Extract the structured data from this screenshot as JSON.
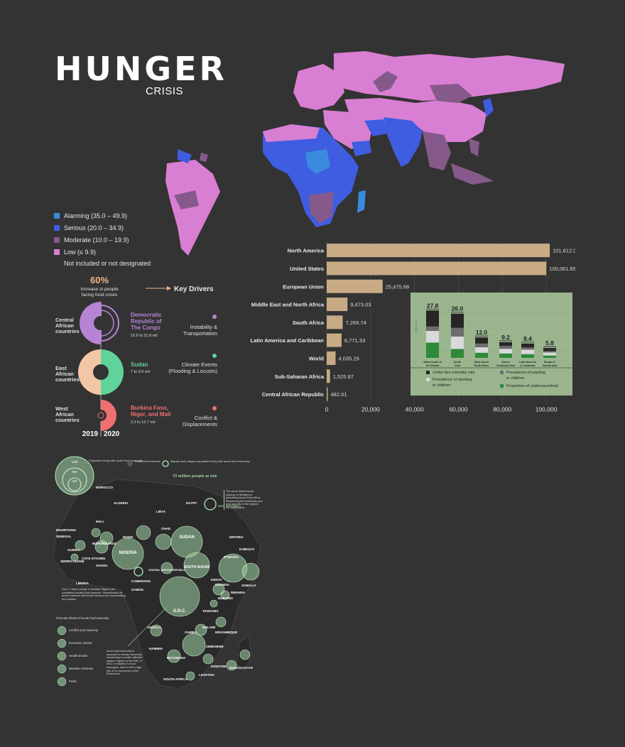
{
  "title": {
    "main": "HUNGER",
    "sub": "CRISIS"
  },
  "map_legend": [
    {
      "label": "Alarming (35.0 – 49.9)",
      "color": "#3a8be0"
    },
    {
      "label": "Serious (20.0 – 34.9)",
      "color": "#3f5de0"
    },
    {
      "label": "Moderate (10.0 – 19.9)",
      "color": "#855a8a"
    },
    {
      "label": "Low (≤ 9.9)",
      "color": "#d97fd3"
    },
    {
      "label": "Not included or not designated",
      "color": ""
    }
  ],
  "colors": {
    "background": "#333333",
    "bar": "#c8ab85",
    "panel": "#9ab58e",
    "purple": "#b684d4",
    "green": "#5fd39a",
    "coral": "#f0706f",
    "peach": "#f3c6a5"
  },
  "chart_data": [
    {
      "type": "bar",
      "orientation": "horizontal",
      "categories": [
        "North America",
        "United States",
        "European Union",
        "Middle East and North Africa",
        "South Africa",
        "Latin America and Caribbean",
        "World",
        "Sub-Saharan Africa",
        "Central African Republic"
      ],
      "values": [
        101612.06,
        100061.65,
        25475.68,
        9473.03,
        7269.74,
        6771.33,
        4035.29,
        1525.97,
        482.01
      ],
      "value_labels": [
        "101,612.06",
        "100,061.65",
        "25,475.68",
        "9,473.03",
        "7,269.74",
        "6,771.33",
        "4,035.29",
        "1,525.97",
        "482.01"
      ],
      "xlim": [
        0,
        110000
      ],
      "xticks": [
        0,
        20000,
        40000,
        60000,
        80000,
        100000
      ],
      "xtick_labels": [
        "0",
        "20,000",
        "40,000",
        "60,000",
        "80,000",
        "100,000"
      ],
      "grid": true
    },
    {
      "type": "bar",
      "stacked": true,
      "categories": [
        "Africa South of the Sahara",
        "South Asia",
        "West Asia & North Africa",
        "East & Southeast Asia",
        "Latin America & Caribbean",
        "Europe & Central Asia"
      ],
      "totals": [
        27.8,
        26.0,
        12.0,
        9.2,
        8.4,
        5.8
      ],
      "total_labels": [
        "27.8",
        "26.0",
        "12.0",
        "9.2",
        "8.4",
        "5.8"
      ],
      "ylabel": "GHI score",
      "series": [
        {
          "name": "Proportion of undernourished",
          "color": "#2e8a3a",
          "values": [
            9.0,
            5.2,
            3.0,
            2.6,
            2.2,
            1.4
          ]
        },
        {
          "name": "Prevalence of stunting in children",
          "color": "#d9d9d9",
          "values": [
            6.8,
            7.3,
            3.2,
            2.7,
            2.6,
            1.8
          ]
        },
        {
          "name": "Prevalence of wasting in children",
          "color": "#6d6d6d",
          "values": [
            2.6,
            5.1,
            2.2,
            1.7,
            1.3,
            0.8
          ]
        },
        {
          "name": "Under-five mortality rate",
          "color": "#262626",
          "values": [
            9.4,
            8.4,
            3.6,
            2.2,
            2.3,
            1.8
          ]
        }
      ],
      "legend": [
        "Under-five mortality rate",
        "Prevalence of wasting in children",
        "Prevalence of stunting in children",
        "Proportion of undernourished"
      ],
      "legend_placement": "bottom"
    }
  ],
  "key_drivers": {
    "pct": "60%",
    "pct_text_1": "Increase in people",
    "pct_text_2": "facing food crises",
    "heading": "Key Drivers",
    "years": [
      "2019",
      "2020"
    ],
    "rows": [
      {
        "region_1": "Central",
        "region_2": "African",
        "region_3": "countries",
        "country_1": "Democratic",
        "country_2": "Republic of",
        "country_3": "The Congo",
        "range": "15.6 to 21.8 mil",
        "driver_1": "Instability &",
        "driver_2": "Transportation"
      },
      {
        "region_1": "East",
        "region_2": "African",
        "region_3": "countries",
        "country_1": "Sudan",
        "country_2": "",
        "country_3": "",
        "range": "7 to 9.6 mil",
        "driver_1": "Climate Events",
        "driver_2": "(Flooding & Locusts)"
      },
      {
        "region_1": "West",
        "region_2": "African",
        "region_3": "countries",
        "country_1": "Burkina Faso,",
        "country_2": "Niger, and Mali",
        "country_3": "",
        "range": "3.2 to 12.7 mil",
        "driver_1": "Conflict &",
        "driver_2": "Displacements"
      }
    ]
  },
  "africa": {
    "legend_sizes": [
      "10M",
      "5M",
      "2M"
    ],
    "legend_items": [
      "Population living with acute food insecurity",
      "Insufficient evidence",
      "Migrant and refugee population living with acute food insecurity"
    ],
    "headline": "73 million people at risk",
    "countries": [
      "MOROCCO",
      "ALGERIA",
      "LIBYA",
      "EGYPT",
      "MAURITANIA",
      "MALI",
      "NIGER",
      "CHAD",
      "SUDAN",
      "ERITREA",
      "SENEGAL",
      "GUINEA",
      "BURKINA FASO",
      "NIGERIA",
      "ETHIOPIA",
      "DJIBOUTI",
      "SIERRA LEONE",
      "COTE D'IVOIRE",
      "GHANA",
      "SOUTH SUDAN",
      "LIBERIA",
      "CAMEROON",
      "CENTRAL AFRICAN REPUBLIC",
      "KENYA",
      "SOMALIA",
      "GABON",
      "UGANDA",
      "RWANDA",
      "BURUNDI",
      "D.R.C.",
      "TANZANIA",
      "ANGOLA",
      "MALAWI",
      "ZAMBIA",
      "MOZAMBIQUE",
      "NAMIBIA",
      "ZIMBABWE",
      "BOTSWANA",
      "ESWATINI",
      "MADAGASCAR",
      "SOUTH AFRICA",
      "LESOTHO",
      "HOST REFUGEES"
    ],
    "note_locust": "The worst desert locust upsurge in decades is spreading across East Africa, threatening the livelihoods and food security of the region's rural population.",
    "note_nigeria": "Over 7 million people in Northern Nigeria are considered acutely food insecure. Intensification of armed violence and border closures are exacerbating the problem.",
    "note_drc": "Acute food insecurity is expected to remain extremely concerning in conflict-affected eastern regions of the DRC in 2020. In addition to food shortages, there is still a high risk of re-emergence of the Ebola virus.",
    "drivers_title": "Forecast drivers of acute food insecurity",
    "drivers": [
      "Conflict and insecurity",
      "Economic shocks",
      "Health shocks",
      "Weather extremes",
      "Pests"
    ]
  }
}
